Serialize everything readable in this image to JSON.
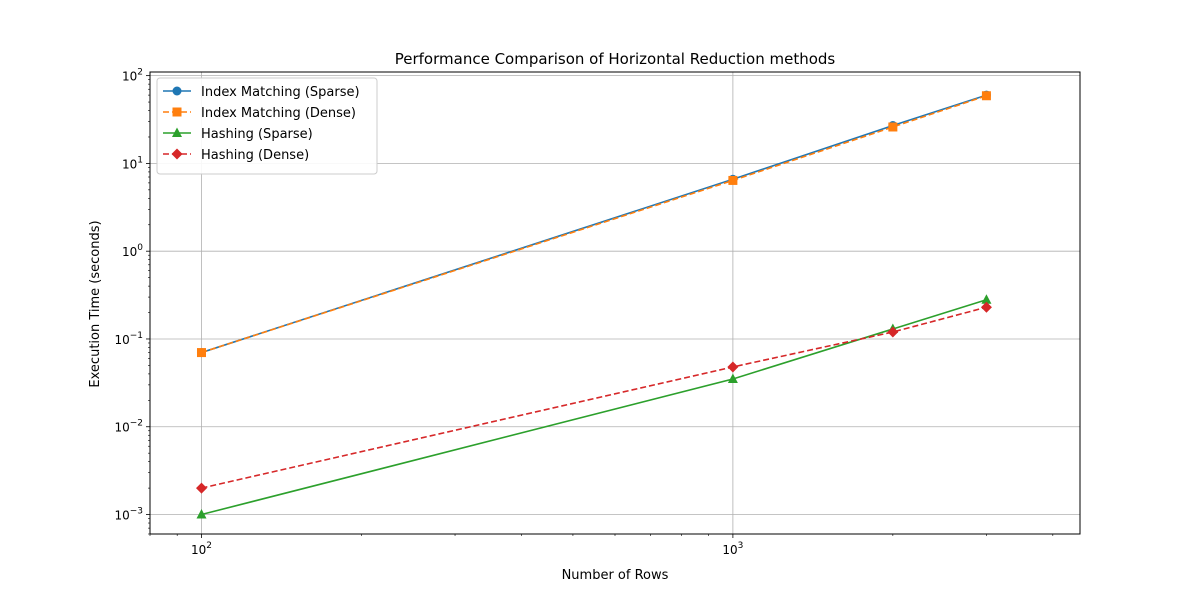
{
  "chart_data": {
    "type": "line",
    "title": "Performance Comparison of Horizontal Reduction methods",
    "xlabel": "Number of Rows",
    "ylabel": "Execution Time (seconds)",
    "x_scale": "log",
    "y_scale": "log",
    "xlim": [
      80,
      4500
    ],
    "ylim": [
      0.0006,
      110
    ],
    "x": [
      100,
      1000,
      2000,
      3000
    ],
    "x_ticks": [
      {
        "value": 100,
        "base": "10",
        "exp": "2"
      },
      {
        "value": 1000,
        "base": "10",
        "exp": "3"
      }
    ],
    "y_ticks": [
      {
        "value": 0.001,
        "base": "10",
        "exp": "−3"
      },
      {
        "value": 0.01,
        "base": "10",
        "exp": "−2"
      },
      {
        "value": 0.1,
        "base": "10",
        "exp": "−1"
      },
      {
        "value": 1,
        "base": "10",
        "exp": "0"
      },
      {
        "value": 10,
        "base": "10",
        "exp": "1"
      },
      {
        "value": 100,
        "base": "10",
        "exp": "2"
      }
    ],
    "grid": true,
    "legend_position": "top-left",
    "series": [
      {
        "name": "Index Matching (Sparse)",
        "values": [
          0.07,
          6.6,
          27,
          60
        ],
        "color": "#1f77b4",
        "marker": "circle",
        "dashed": false
      },
      {
        "name": "Index Matching (Dense)",
        "values": [
          0.07,
          6.4,
          26,
          59
        ],
        "color": "#ff7f0e",
        "marker": "square",
        "dashed": true
      },
      {
        "name": "Hashing (Sparse)",
        "values": [
          0.001,
          0.035,
          0.13,
          0.28
        ],
        "color": "#2ca02c",
        "marker": "triangle",
        "dashed": false
      },
      {
        "name": "Hashing (Dense)",
        "values": [
          0.002,
          0.048,
          0.12,
          0.23
        ],
        "color": "#d62728",
        "marker": "diamond",
        "dashed": true
      }
    ]
  }
}
